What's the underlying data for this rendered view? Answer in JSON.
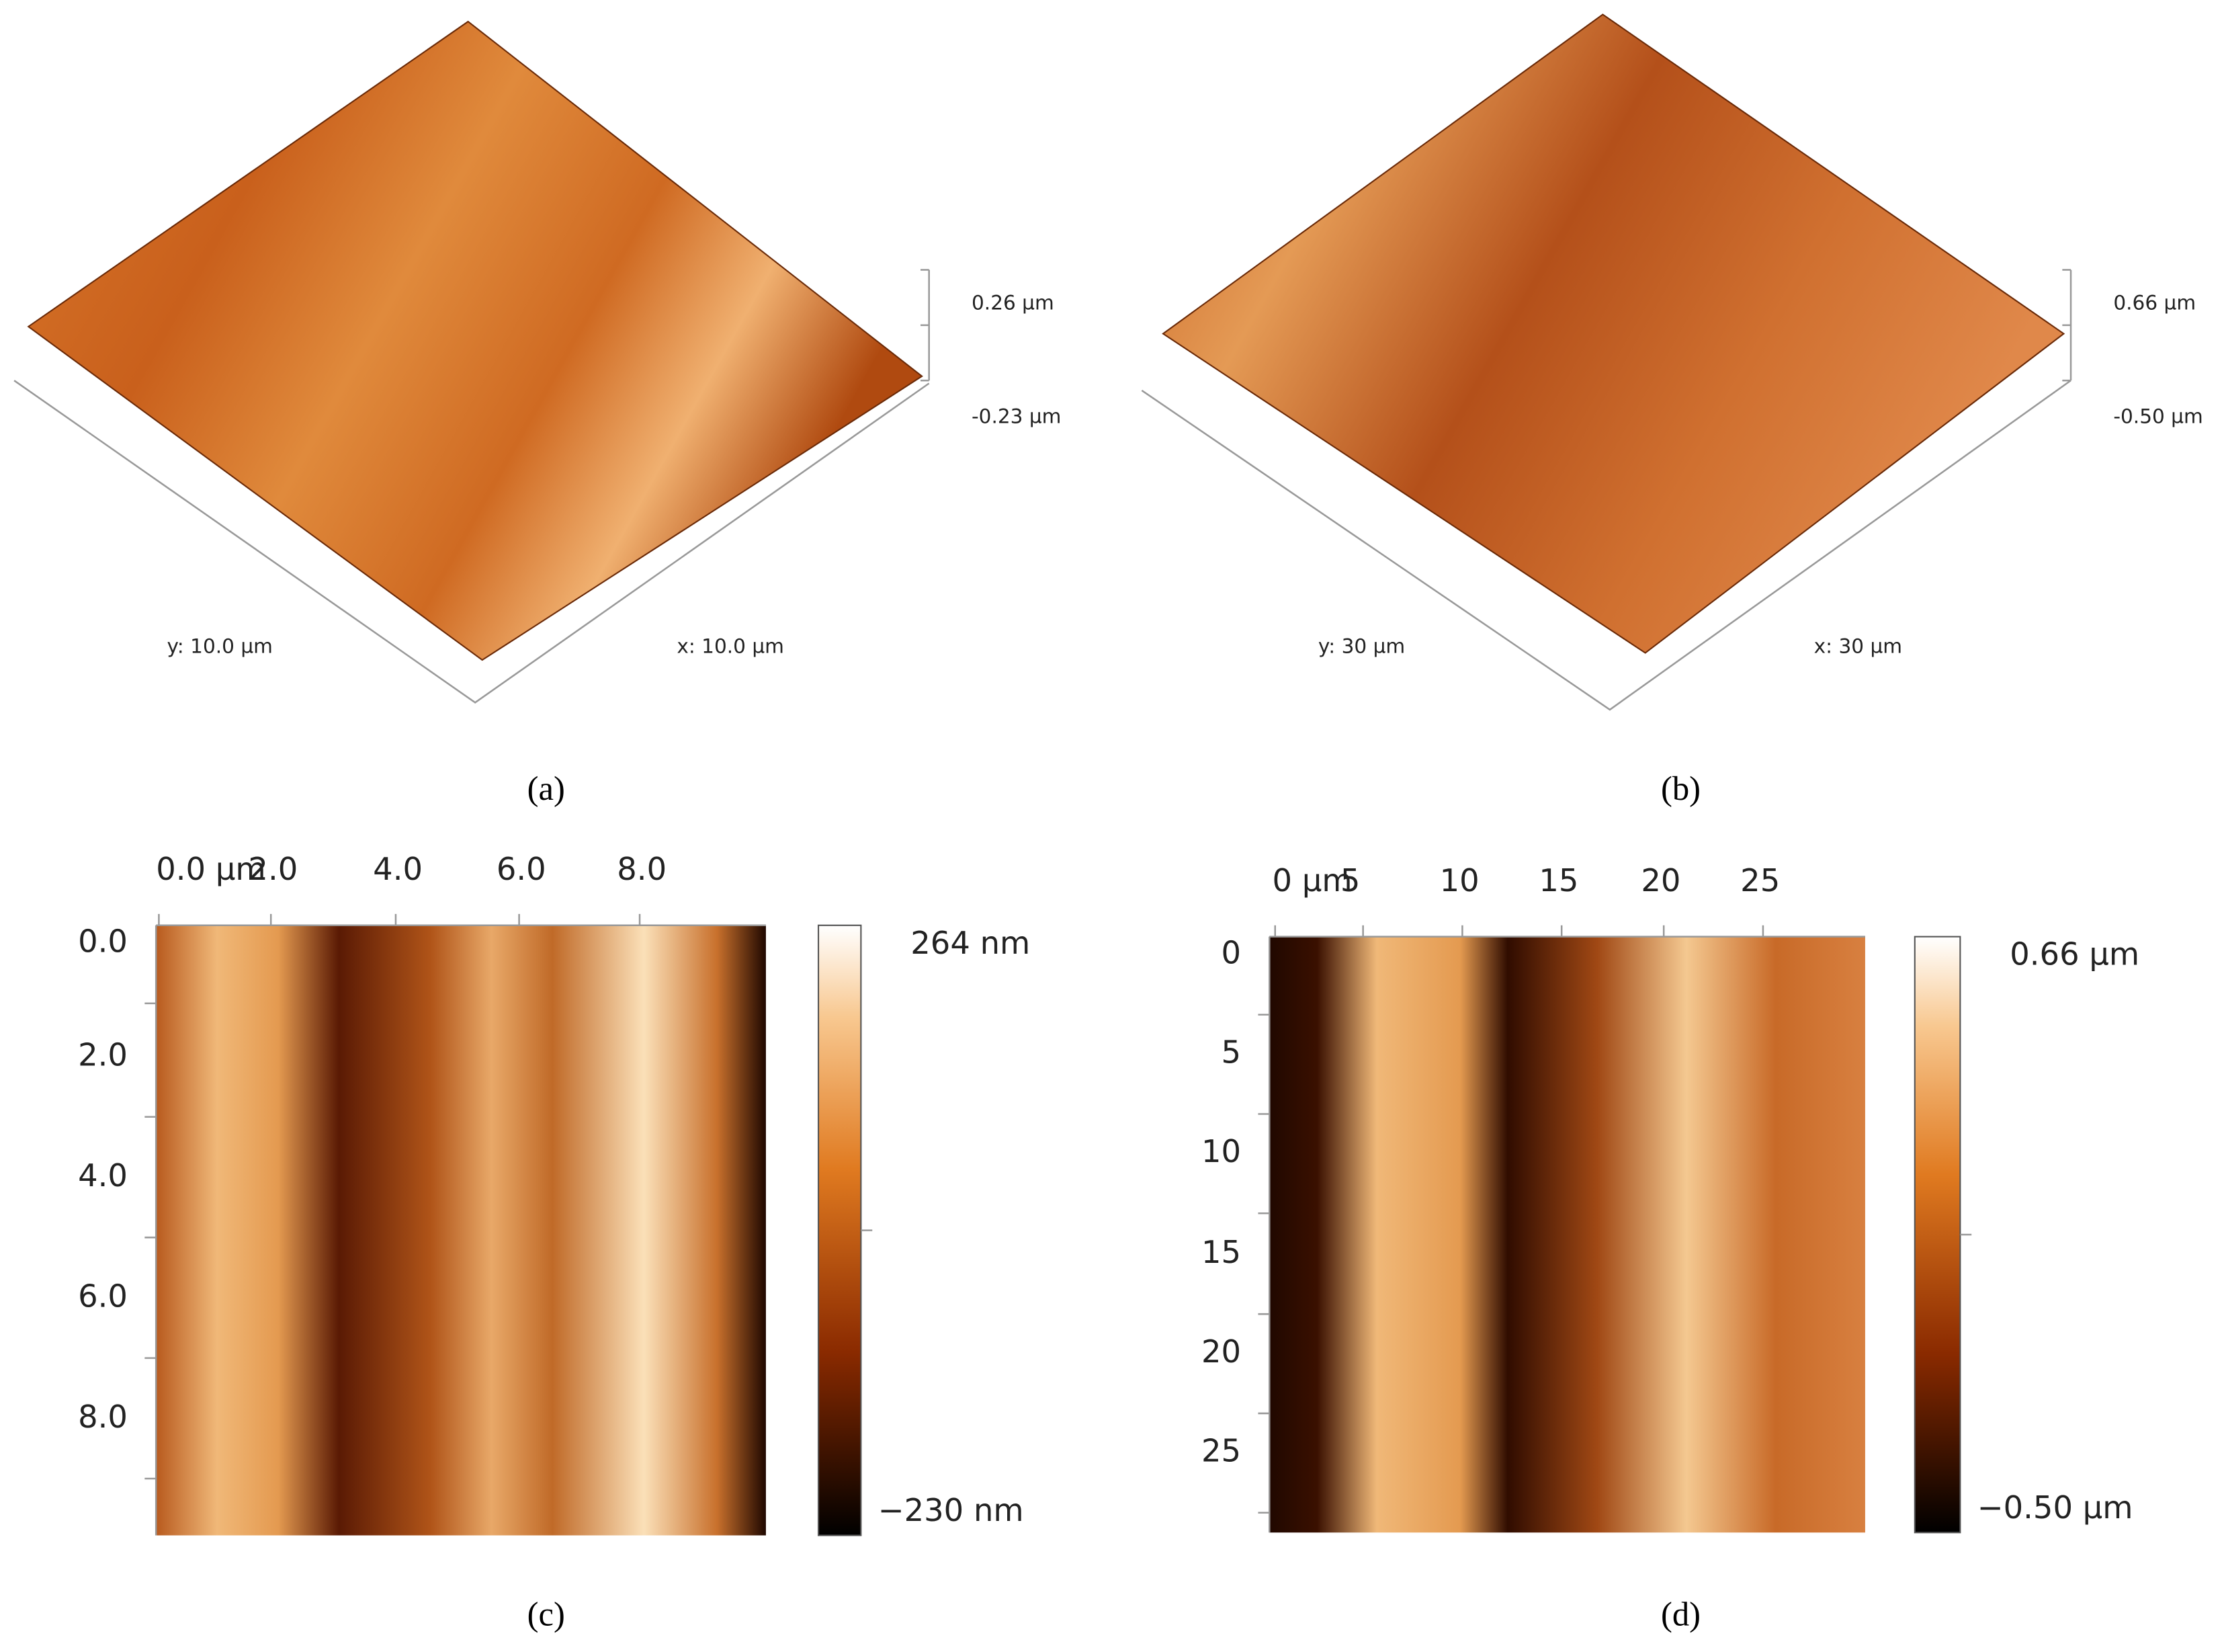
{
  "panels": [
    {
      "caption": "(a)",
      "z_labels": [
        "0.26 µm",
        "-0.23 µm"
      ],
      "y_label": "y: 10.0 µm",
      "x_label": "x: 10.0 µm"
    },
    {
      "caption": "(b)",
      "z_labels": [
        "0.66 µm",
        "-0.50 µm"
      ],
      "y_label": "y: 30 µm",
      "x_label": "x: 30 µm"
    }
  ],
  "maps": [
    {
      "caption": "(c)",
      "x_ticks": [
        "0.0 µm",
        "2.0",
        "4.0",
        "6.0",
        "8.0"
      ],
      "y_ticks": [
        "0.0",
        "2.0",
        "4.0",
        "6.0",
        "8.0"
      ],
      "colorbar": [
        "264 nm",
        "−230 nm"
      ]
    },
    {
      "caption": "(d)",
      "x_ticks": [
        "0 µm",
        "5",
        "10",
        "15",
        "20",
        "25"
      ],
      "y_ticks": [
        "0",
        "5",
        "10",
        "15",
        "20",
        "25"
      ],
      "colorbar": [
        "0.66 µm",
        "−0.50 µm"
      ]
    }
  ]
}
